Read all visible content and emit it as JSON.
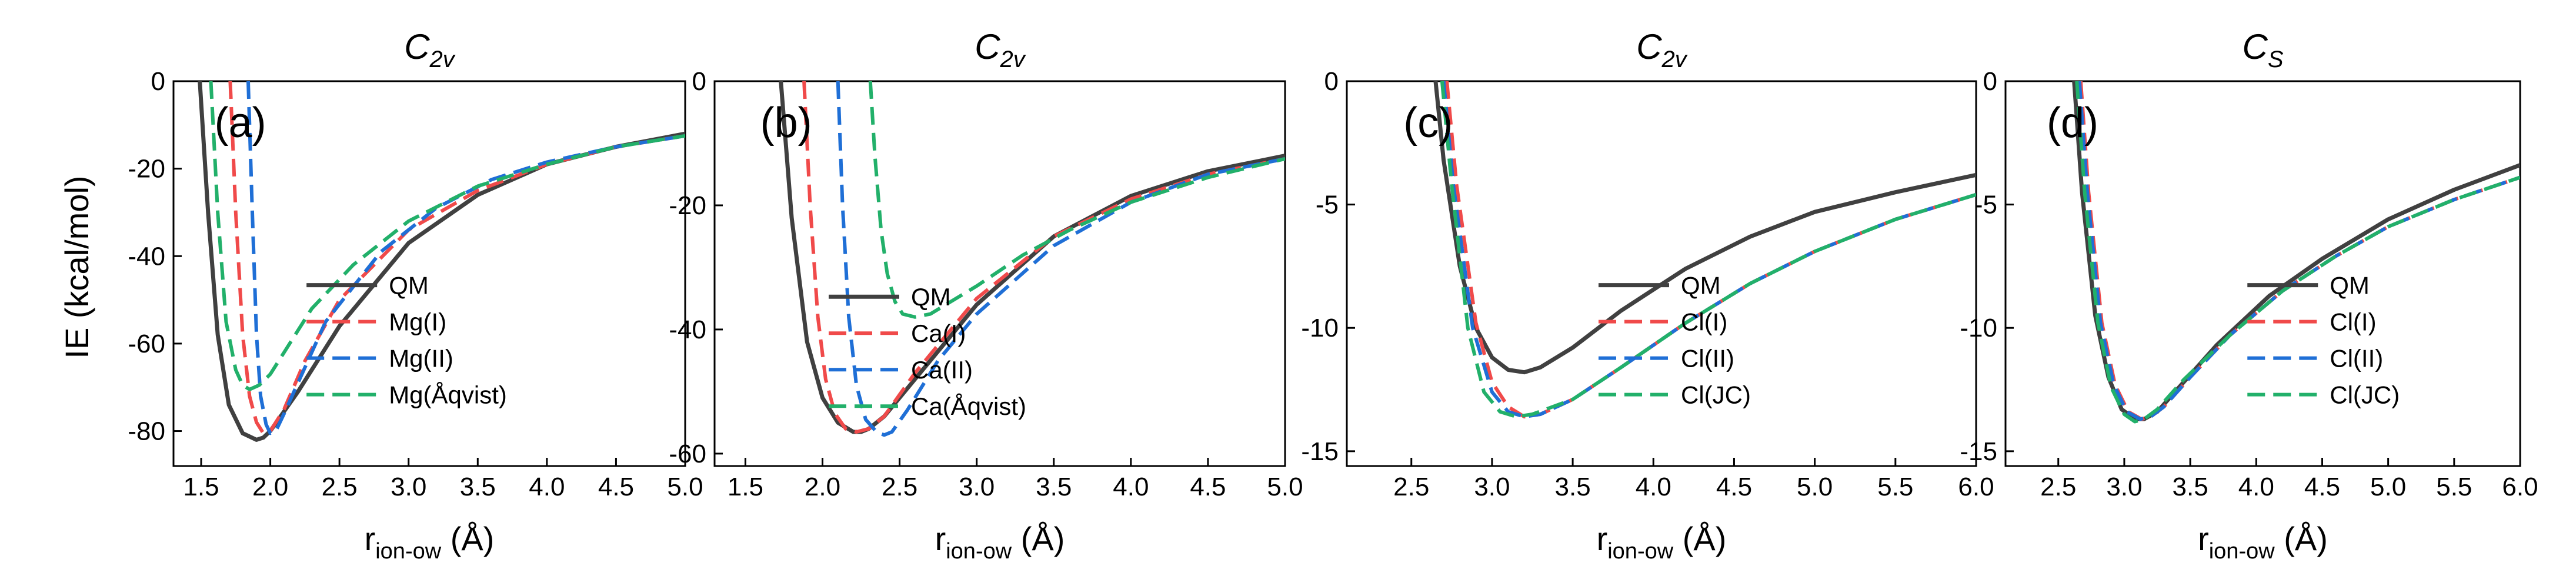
{
  "figure": {
    "ylabel": "IE (kcal/mol)"
  },
  "chart_data": [
    {
      "type": "line",
      "panel_label": "(a)",
      "title": "C",
      "title_sub": "2v",
      "xlabel": "r",
      "xlabel_sub": "ion-ow",
      "xlabel_unit": " (Å)",
      "ylabel": "IE (kcal/mol)",
      "xlim": [
        1.3,
        5.0
      ],
      "ylim": [
        -88,
        0
      ],
      "xticks": [
        1.5,
        2.0,
        2.5,
        3.0,
        3.5,
        4.0,
        4.5,
        5.0
      ],
      "xtick_labels": [
        "1.5",
        "2.0",
        "2.5",
        "3.0",
        "3.5",
        "4.0",
        "4.5",
        "5.0"
      ],
      "yticks": [
        0,
        -20,
        -40,
        -60,
        -80
      ],
      "ytick_labels": [
        "0",
        "-20",
        "-40",
        "-60",
        "-80"
      ],
      "series": [
        {
          "name": "QM",
          "color": "#404040",
          "style": "solid",
          "x": [
            1.49,
            1.55,
            1.62,
            1.7,
            1.8,
            1.9,
            1.95,
            2.0,
            2.2,
            2.5,
            3.0,
            3.5,
            4.0,
            4.5,
            5.0
          ],
          "y": [
            0,
            -30,
            -58,
            -74,
            -80.5,
            -82,
            -81.5,
            -80,
            -71,
            -56,
            -37,
            -26,
            -19,
            -15,
            -12
          ]
        },
        {
          "name": "Mg(I)",
          "color": "#f04a4a",
          "style": "dashed",
          "x": [
            1.71,
            1.75,
            1.8,
            1.85,
            1.9,
            1.95,
            2.0,
            2.1,
            2.25,
            2.5,
            3.0,
            3.5,
            4.0,
            4.5,
            5.0
          ],
          "y": [
            0,
            -30,
            -58,
            -72,
            -78,
            -80.5,
            -80,
            -75,
            -64,
            -50,
            -34,
            -25,
            -19,
            -15,
            -12.5
          ]
        },
        {
          "name": "Mg(II)",
          "color": "#1f6fd6",
          "style": "dashed",
          "x": [
            1.84,
            1.87,
            1.9,
            1.93,
            1.97,
            2.0,
            2.04,
            2.1,
            2.2,
            2.4,
            2.8,
            3.2,
            3.6,
            4.0,
            4.5,
            5.0
          ],
          "y": [
            0,
            -30,
            -58,
            -72,
            -78.5,
            -80.5,
            -80,
            -76,
            -69,
            -55,
            -39,
            -29,
            -22.5,
            -18.5,
            -15,
            -12.5
          ]
        },
        {
          "name": "Mg(Åqvist)",
          "color": "#22b06a",
          "style": "dashed",
          "x": [
            1.57,
            1.62,
            1.68,
            1.75,
            1.8,
            1.85,
            1.92,
            2.0,
            2.1,
            2.3,
            2.6,
            3.0,
            3.5,
            4.0,
            4.5,
            5.0
          ],
          "y": [
            0,
            -30,
            -55,
            -66,
            -69.5,
            -70.5,
            -69.5,
            -67,
            -62,
            -52,
            -42,
            -32,
            -24,
            -19,
            -15,
            -12.5
          ]
        }
      ]
    },
    {
      "type": "line",
      "panel_label": "(b)",
      "title": "C",
      "title_sub": "2v",
      "xlabel": "r",
      "xlabel_sub": "ion-ow",
      "xlabel_unit": " (Å)",
      "ylabel": "",
      "xlim": [
        1.3,
        5.0
      ],
      "ylim": [
        -62,
        0
      ],
      "xticks": [
        1.5,
        2.0,
        2.5,
        3.0,
        3.5,
        4.0,
        4.5,
        5.0
      ],
      "xtick_labels": [
        "1.5",
        "2.0",
        "2.5",
        "3.0",
        "3.5",
        "4.0",
        "4.5",
        "5.0"
      ],
      "yticks": [
        0,
        -20,
        -40,
        -60
      ],
      "ytick_labels": [
        "0",
        "-20",
        "-40",
        "-60"
      ],
      "series": [
        {
          "name": "QM",
          "color": "#404040",
          "style": "solid",
          "x": [
            1.73,
            1.8,
            1.9,
            2.0,
            2.1,
            2.2,
            2.25,
            2.3,
            2.4,
            2.6,
            3.0,
            3.5,
            4.0,
            4.5,
            5.0
          ],
          "y": [
            0,
            -22,
            -42,
            -51,
            -55,
            -56.5,
            -56.5,
            -56,
            -54,
            -48,
            -36,
            -25,
            -18.5,
            -14.5,
            -12
          ]
        },
        {
          "name": "Ca(I)",
          "color": "#f04a4a",
          "style": "dashed",
          "x": [
            1.88,
            1.92,
            1.97,
            2.02,
            2.08,
            2.15,
            2.22,
            2.3,
            2.4,
            2.6,
            3.0,
            3.5,
            4.0,
            4.5,
            5.0
          ],
          "y": [
            0,
            -20,
            -38,
            -48,
            -53.5,
            -56,
            -56.5,
            -56,
            -54,
            -47,
            -35,
            -25,
            -19,
            -15,
            -12.5
          ]
        },
        {
          "name": "Ca(II)",
          "color": "#1f6fd6",
          "style": "dashed",
          "x": [
            2.1,
            2.13,
            2.17,
            2.22,
            2.28,
            2.35,
            2.4,
            2.45,
            2.55,
            2.75,
            3.0,
            3.5,
            4.0,
            4.5,
            5.0
          ],
          "y": [
            0,
            -20,
            -38,
            -49,
            -54.5,
            -56.5,
            -57,
            -56.5,
            -53,
            -45,
            -37.5,
            -26.5,
            -19.5,
            -15,
            -12.5
          ]
        },
        {
          "name": "Ca(Åqvist)",
          "color": "#22b06a",
          "style": "dashed",
          "x": [
            2.31,
            2.34,
            2.38,
            2.42,
            2.47,
            2.52,
            2.6,
            2.7,
            2.8,
            3.0,
            3.3,
            3.6,
            4.0,
            4.5,
            5.0
          ],
          "y": [
            0,
            -12,
            -24,
            -31,
            -35.5,
            -37.5,
            -38,
            -37.5,
            -36,
            -33,
            -28,
            -24,
            -19.5,
            -15.5,
            -12.5
          ]
        }
      ]
    },
    {
      "type": "line",
      "panel_label": "(c)",
      "title": "C",
      "title_sub": "2v",
      "xlabel": "r",
      "xlabel_sub": "ion-ow",
      "xlabel_unit": " (Å)",
      "ylabel": "",
      "xlim": [
        2.1,
        6.0
      ],
      "ylim": [
        -15.6,
        0
      ],
      "xticks": [
        2.5,
        3.0,
        3.5,
        4.0,
        4.5,
        5.0,
        5.5,
        6.0
      ],
      "xtick_labels": [
        "2.5",
        "3.0",
        "3.5",
        "4.0",
        "4.5",
        "5.0",
        "5.5",
        "6.0"
      ],
      "yticks": [
        0,
        -5,
        -10,
        -15
      ],
      "ytick_labels": [
        "0",
        "-5",
        "-10",
        "-15"
      ],
      "series": [
        {
          "name": "QM",
          "color": "#404040",
          "style": "solid",
          "x": [
            2.65,
            2.7,
            2.8,
            2.9,
            3.0,
            3.1,
            3.2,
            3.3,
            3.5,
            3.8,
            4.2,
            4.6,
            5.0,
            5.5,
            6.0
          ],
          "y": [
            0,
            -3.2,
            -7.5,
            -10.0,
            -11.2,
            -11.7,
            -11.8,
            -11.6,
            -10.8,
            -9.3,
            -7.6,
            -6.3,
            -5.3,
            -4.5,
            -3.8
          ]
        },
        {
          "name": "Cl(I)",
          "color": "#f04a4a",
          "style": "dashed",
          "x": [
            2.72,
            2.78,
            2.9,
            3.0,
            3.1,
            3.2,
            3.3,
            3.5,
            3.8,
            4.2,
            4.6,
            5.0,
            5.5,
            6.0
          ],
          "y": [
            0,
            -4.2,
            -9.8,
            -12.2,
            -13.2,
            -13.6,
            -13.5,
            -12.9,
            -11.6,
            -9.8,
            -8.2,
            -6.9,
            -5.6,
            -4.6
          ]
        },
        {
          "name": "Cl(II)",
          "color": "#1f6fd6",
          "style": "dashed",
          "x": [
            2.7,
            2.76,
            2.88,
            3.0,
            3.1,
            3.2,
            3.3,
            3.5,
            3.8,
            4.2,
            4.6,
            5.0,
            5.5,
            6.0
          ],
          "y": [
            0,
            -4.2,
            -10.0,
            -12.6,
            -13.4,
            -13.6,
            -13.5,
            -12.9,
            -11.6,
            -9.8,
            -8.2,
            -6.9,
            -5.6,
            -4.6
          ]
        },
        {
          "name": "Cl(JC)",
          "color": "#22b06a",
          "style": "dashed",
          "x": [
            2.69,
            2.75,
            2.85,
            2.95,
            3.05,
            3.15,
            3.25,
            3.5,
            3.8,
            4.2,
            4.6,
            5.0,
            5.5,
            6.0
          ],
          "y": [
            0,
            -4.2,
            -10.0,
            -12.6,
            -13.4,
            -13.6,
            -13.5,
            -12.9,
            -11.6,
            -9.8,
            -8.2,
            -6.9,
            -5.6,
            -4.6
          ]
        }
      ]
    },
    {
      "type": "line",
      "panel_label": "(d)",
      "title": "C",
      "title_sub": "S",
      "xlabel": "r",
      "xlabel_sub": "ion-ow",
      "xlabel_unit": " (Å)",
      "ylabel": "",
      "xlim": [
        2.1,
        6.0
      ],
      "ylim": [
        -15.6,
        0
      ],
      "xticks": [
        2.5,
        3.0,
        3.5,
        4.0,
        4.5,
        5.0,
        5.5,
        6.0
      ],
      "xtick_labels": [
        "2.5",
        "3.0",
        "3.5",
        "4.0",
        "4.5",
        "5.0",
        "5.5",
        "6.0"
      ],
      "yticks": [
        0,
        -5,
        -10,
        -15
      ],
      "ytick_labels": [
        "0",
        "-5",
        "-10",
        "-15"
      ],
      "series": [
        {
          "name": "QM",
          "color": "#404040",
          "style": "solid",
          "x": [
            2.62,
            2.68,
            2.78,
            2.88,
            2.98,
            3.08,
            3.15,
            3.25,
            3.4,
            3.7,
            4.1,
            4.5,
            5.0,
            5.5,
            6.0
          ],
          "y": [
            0,
            -4.5,
            -9.5,
            -12.0,
            -13.3,
            -13.7,
            -13.7,
            -13.4,
            -12.5,
            -10.7,
            -8.7,
            -7.2,
            -5.6,
            -4.4,
            -3.4
          ]
        },
        {
          "name": "Cl(I)",
          "color": "#f04a4a",
          "style": "dashed",
          "x": [
            2.67,
            2.73,
            2.83,
            2.93,
            3.03,
            3.13,
            3.2,
            3.3,
            3.5,
            3.8,
            4.2,
            4.6,
            5.0,
            5.5,
            6.0
          ],
          "y": [
            0,
            -4.5,
            -9.8,
            -12.3,
            -13.4,
            -13.7,
            -13.6,
            -13.2,
            -12.0,
            -10.3,
            -8.5,
            -7.1,
            -5.9,
            -4.8,
            -3.9
          ]
        },
        {
          "name": "Cl(II)",
          "color": "#1f6fd6",
          "style": "dashed",
          "x": [
            2.66,
            2.72,
            2.82,
            2.92,
            3.02,
            3.12,
            3.2,
            3.3,
            3.5,
            3.8,
            4.2,
            4.6,
            5.0,
            5.5,
            6.0
          ],
          "y": [
            0,
            -4.5,
            -9.8,
            -12.3,
            -13.4,
            -13.7,
            -13.6,
            -13.2,
            -12.0,
            -10.3,
            -8.5,
            -7.1,
            -5.9,
            -4.8,
            -3.9
          ]
        },
        {
          "name": "Cl(JC)",
          "color": "#22b06a",
          "style": "dashed",
          "x": [
            2.64,
            2.7,
            2.8,
            2.9,
            3.0,
            3.08,
            3.15,
            3.25,
            3.45,
            3.8,
            4.2,
            4.6,
            5.0,
            5.5,
            6.0
          ],
          "y": [
            0,
            -4.5,
            -9.8,
            -12.4,
            -13.5,
            -13.8,
            -13.7,
            -13.3,
            -12.1,
            -10.3,
            -8.5,
            -7.1,
            -5.9,
            -4.8,
            -3.9
          ]
        }
      ]
    }
  ]
}
